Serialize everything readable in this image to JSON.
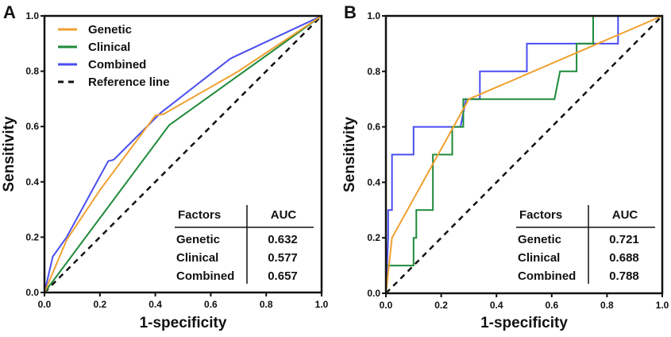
{
  "colors": {
    "Genetic": "#f0a030",
    "Clinical": "#1f8a3a",
    "Combined": "#4a4ef0",
    "Reference line": "#111111"
  },
  "chart_data": [
    {
      "panel_label": "A",
      "type": "line",
      "xlabel": "1-specificity",
      "ylabel": "Sensitivity",
      "xlim": [
        0,
        1
      ],
      "ylim": [
        0,
        1
      ],
      "xticks": [
        "0.0",
        "0.2",
        "0.4",
        "0.6",
        "0.8",
        "1.0"
      ],
      "yticks": [
        "0.0",
        "0.2",
        "0.4",
        "0.6",
        "0.8",
        "1.0"
      ],
      "grid": false,
      "legend": {
        "placement": "top-left",
        "entries": [
          "Genetic",
          "Clinical",
          "Combined",
          "Reference line"
        ]
      },
      "series": [
        {
          "name": "Genetic",
          "points": [
            [
              0,
              0
            ],
            [
              0.08,
              0.19
            ],
            [
              0.2,
              0.37
            ],
            [
              0.4,
              0.64
            ],
            [
              0.43,
              0.645
            ],
            [
              0.7,
              0.8
            ],
            [
              1,
              1
            ]
          ]
        },
        {
          "name": "Clinical",
          "points": [
            [
              0,
              0
            ],
            [
              0.45,
              0.605
            ],
            [
              1,
              1
            ]
          ]
        },
        {
          "name": "Combined",
          "points": [
            [
              0,
              0
            ],
            [
              0.03,
              0.13
            ],
            [
              0.08,
              0.2
            ],
            [
              0.23,
              0.475
            ],
            [
              0.25,
              0.48
            ],
            [
              0.42,
              0.65
            ],
            [
              0.67,
              0.845
            ],
            [
              0.68,
              0.85
            ],
            [
              1,
              1
            ]
          ]
        },
        {
          "name": "Reference line",
          "points": [
            [
              0,
              0
            ],
            [
              1,
              1
            ]
          ],
          "dashed": true
        }
      ],
      "table": {
        "headers": [
          "Factors",
          "AUC"
        ],
        "rows": [
          [
            "Genetic",
            "0.632"
          ],
          [
            "Clinical",
            "0.577"
          ],
          [
            "Combined",
            "0.657"
          ]
        ]
      }
    },
    {
      "panel_label": "B",
      "type": "line",
      "xlabel": "1-specificity",
      "ylabel": "Sensitivity",
      "xlim": [
        0,
        1
      ],
      "ylim": [
        0,
        1
      ],
      "xticks": [
        "0.0",
        "0.2",
        "0.4",
        "0.6",
        "0.8",
        "1.0"
      ],
      "yticks": [
        "0.0",
        "0.2",
        "0.4",
        "0.6",
        "0.8",
        "1.0"
      ],
      "grid": false,
      "series": [
        {
          "name": "Genetic",
          "points": [
            [
              0,
              0
            ],
            [
              0.022,
              0.2
            ],
            [
              0.3,
              0.7
            ],
            [
              1,
              1
            ]
          ]
        },
        {
          "name": "Clinical",
          "points": [
            [
              0,
              0
            ],
            [
              0,
              0.1
            ],
            [
              0.1,
              0.1
            ],
            [
              0.1,
              0.2
            ],
            [
              0.11,
              0.2
            ],
            [
              0.11,
              0.3
            ],
            [
              0.17,
              0.3
            ],
            [
              0.17,
              0.5
            ],
            [
              0.24,
              0.5
            ],
            [
              0.24,
              0.6
            ],
            [
              0.28,
              0.6
            ],
            [
              0.28,
              0.7
            ],
            [
              0.61,
              0.7
            ],
            [
              0.63,
              0.8
            ],
            [
              0.69,
              0.8
            ],
            [
              0.69,
              0.9
            ],
            [
              0.75,
              0.9
            ],
            [
              0.75,
              1.0
            ],
            [
              1,
              1
            ]
          ]
        },
        {
          "name": "Combined",
          "points": [
            [
              0,
              0
            ],
            [
              0.008,
              0.2
            ],
            [
              0.008,
              0.3
            ],
            [
              0.022,
              0.3
            ],
            [
              0.022,
              0.5
            ],
            [
              0.1,
              0.5
            ],
            [
              0.1,
              0.6
            ],
            [
              0.27,
              0.6
            ],
            [
              0.29,
              0.7
            ],
            [
              0.34,
              0.7
            ],
            [
              0.34,
              0.8
            ],
            [
              0.51,
              0.8
            ],
            [
              0.51,
              0.9
            ],
            [
              0.84,
              0.9
            ],
            [
              0.84,
              1.0
            ],
            [
              1,
              1
            ]
          ]
        },
        {
          "name": "Reference line",
          "points": [
            [
              0,
              0
            ],
            [
              1,
              1
            ]
          ],
          "dashed": true
        }
      ],
      "table": {
        "headers": [
          "Factors",
          "AUC"
        ],
        "rows": [
          [
            "Genetic",
            "0.721"
          ],
          [
            "Clinical",
            "0.688"
          ],
          [
            "Combined",
            "0.788"
          ]
        ]
      }
    }
  ]
}
